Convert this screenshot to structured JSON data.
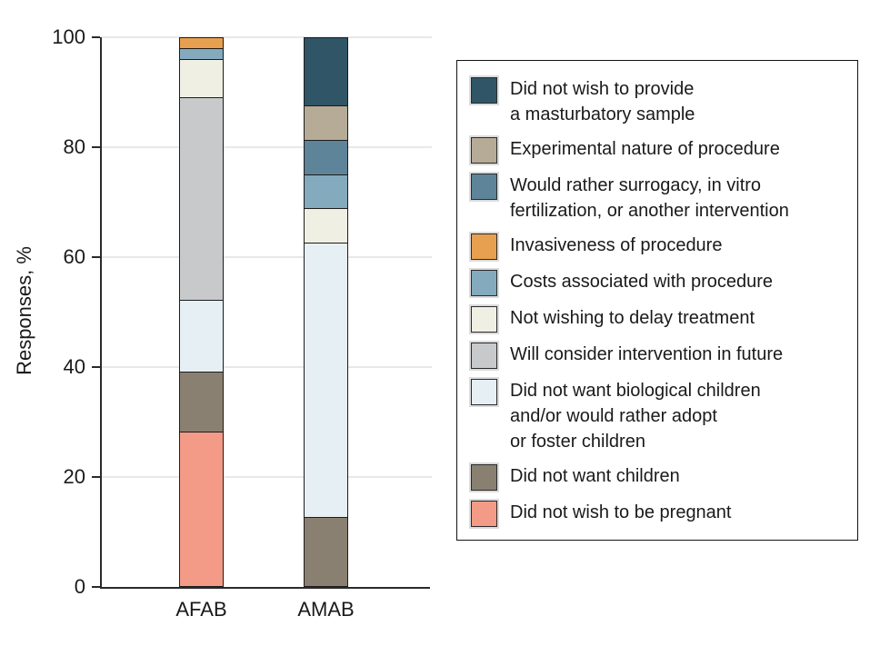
{
  "chart_data": {
    "type": "bar",
    "stacked": true,
    "categories": [
      "AFAB",
      "AMAB"
    ],
    "ylabel": "Responses, %",
    "ylim": [
      0,
      100
    ],
    "yticks": [
      0,
      20,
      40,
      60,
      80,
      100
    ],
    "grid": true,
    "legend_position": "right",
    "series": [
      {
        "name": "Did not wish to provide a masturbatory sample",
        "label_lines": [
          "Did not wish to provide",
          "a masturbatory sample"
        ],
        "color": "#2F5566",
        "values": [
          0,
          12.5
        ]
      },
      {
        "name": "Experimental nature of procedure",
        "label_lines": [
          "Experimental nature of procedure"
        ],
        "color": "#B5AB97",
        "values": [
          0,
          6.25
        ]
      },
      {
        "name": "Would rather surrogacy, in vitro fertilization, or another intervention",
        "label_lines": [
          "Would rather surrogacy, in vitro",
          "fertilization, or another intervention"
        ],
        "color": "#5E8499",
        "values": [
          0,
          6.25
        ]
      },
      {
        "name": "Invasiveness of procedure",
        "label_lines": [
          "Invasiveness of procedure"
        ],
        "color": "#E7A04F",
        "values": [
          2,
          0
        ]
      },
      {
        "name": "Costs associated with procedure",
        "label_lines": [
          "Costs associated with procedure"
        ],
        "color": "#84AABD",
        "values": [
          2,
          6.25
        ]
      },
      {
        "name": "Not wishing to delay treatment",
        "label_lines": [
          "Not wishing to delay treatment"
        ],
        "color": "#F0EFE3",
        "values": [
          7,
          6.25
        ]
      },
      {
        "name": "Will consider intervention in future",
        "label_lines": [
          "Will consider intervention in future"
        ],
        "color": "#C8C9CB",
        "values": [
          37,
          0
        ]
      },
      {
        "name": "Did not want biological children and/or would rather adopt or foster children",
        "label_lines": [
          "Did not want biological children",
          "and/or would rather adopt",
          "or foster children"
        ],
        "color": "#E6EFF4",
        "values": [
          13,
          50
        ]
      },
      {
        "name": "Did not want children",
        "label_lines": [
          "Did not want children"
        ],
        "color": "#8A8071",
        "values": [
          11,
          12.5
        ]
      },
      {
        "name": "Did not wish to be pregnant",
        "label_lines": [
          "Did not wish to be pregnant"
        ],
        "color": "#F39B86",
        "values": [
          28,
          0
        ]
      }
    ]
  },
  "colors": {
    "axis": "#2a2a2a",
    "gridline": "#e8e8e8",
    "segment_border": "#1c1c1c",
    "legend_border": "#141414",
    "text": "#1a1a1a",
    "background": "#ffffff"
  }
}
